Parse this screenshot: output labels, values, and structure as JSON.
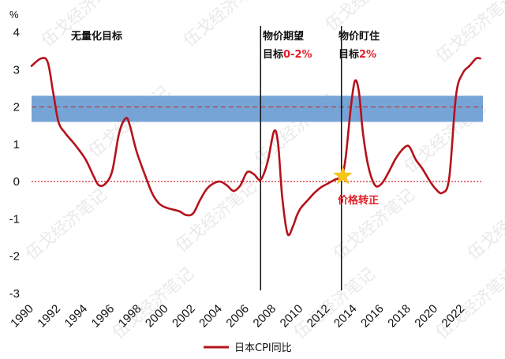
{
  "chart_data": {
    "type": "line",
    "y_unit_label": "%",
    "ylim": [
      -3,
      4
    ],
    "y_ticks": [
      "4",
      "3",
      "2",
      "1",
      "0",
      "-1",
      "-2",
      "-3"
    ],
    "x_range": [
      1990,
      2023.5
    ],
    "x_ticks": [
      "1990",
      "1992",
      "1994",
      "1996",
      "1998",
      "2000",
      "2002",
      "2004",
      "2006",
      "2008",
      "2010",
      "2012",
      "2014",
      "2016",
      "2018",
      "2020",
      "2022"
    ],
    "target_band": {
      "low": 1.6,
      "high": 2.3,
      "color": "#6f9fd4"
    },
    "target_line": {
      "value": 2,
      "color": "#c0392b"
    },
    "zero_line": {
      "value": 0,
      "color": "#d4252a"
    },
    "vertical_lines": [
      2007.0,
      2013.0
    ],
    "series": [
      {
        "name": "日本CPI同比",
        "color": "#b5121b",
        "x": [
          1990,
          1990.7,
          1991.2,
          1991.6,
          1992,
          1992.5,
          1993.2,
          1994,
          1994.6,
          1995,
          1995.5,
          1996,
          1996.5,
          1997,
          1997.3,
          1997.8,
          1998.5,
          1999,
          1999.5,
          2000,
          2000.5,
          2001,
          2001.5,
          2002,
          2002.5,
          2003,
          2003.5,
          2004,
          2004.5,
          2005,
          2005.5,
          2006,
          2006.5,
          2007,
          2007.5,
          2008,
          2008.3,
          2008.6,
          2009,
          2009.4,
          2009.7,
          2010,
          2010.5,
          2011,
          2011.5,
          2012,
          2012.5,
          2013,
          2013.3,
          2013.7,
          2014,
          2014.3,
          2014.6,
          2015,
          2015.5,
          2016,
          2016.5,
          2017,
          2017.5,
          2018,
          2018.5,
          2019,
          2019.5,
          2020,
          2020.5,
          2021,
          2021.5,
          2022,
          2022.5,
          2023,
          2023.3
        ],
        "values": [
          3.1,
          3.3,
          3.2,
          2.4,
          1.6,
          1.3,
          1.0,
          0.6,
          0.15,
          -0.1,
          -0.05,
          0.3,
          1.3,
          1.7,
          1.5,
          0.8,
          0.1,
          -0.35,
          -0.6,
          -0.7,
          -0.75,
          -0.8,
          -0.9,
          -0.85,
          -0.5,
          -0.2,
          -0.05,
          0.0,
          -0.1,
          -0.25,
          -0.1,
          0.25,
          0.2,
          0.05,
          0.5,
          1.35,
          1.0,
          -0.4,
          -1.4,
          -1.2,
          -0.9,
          -0.7,
          -0.5,
          -0.3,
          -0.15,
          -0.05,
          0.05,
          0.15,
          0.6,
          2.0,
          2.7,
          2.4,
          1.3,
          0.4,
          -0.1,
          -0.05,
          0.25,
          0.6,
          0.85,
          0.95,
          0.6,
          0.35,
          0.05,
          -0.2,
          -0.3,
          0.1,
          2.3,
          2.9,
          3.1,
          3.3,
          3.3
        ]
      }
    ]
  },
  "annotations": {
    "no_target": "无量化目标",
    "price_expectation": "物价期望",
    "target_label_1": "目标",
    "target_range": "0-2%",
    "price_target": "物价盯住",
    "target_label_2": "目标",
    "target_value": "2%",
    "price_correction": "价格转正"
  },
  "star_point": {
    "x": 2013.1,
    "y": 0.15,
    "color": "#f6c519"
  },
  "watermark": "伍戈经济笔记"
}
